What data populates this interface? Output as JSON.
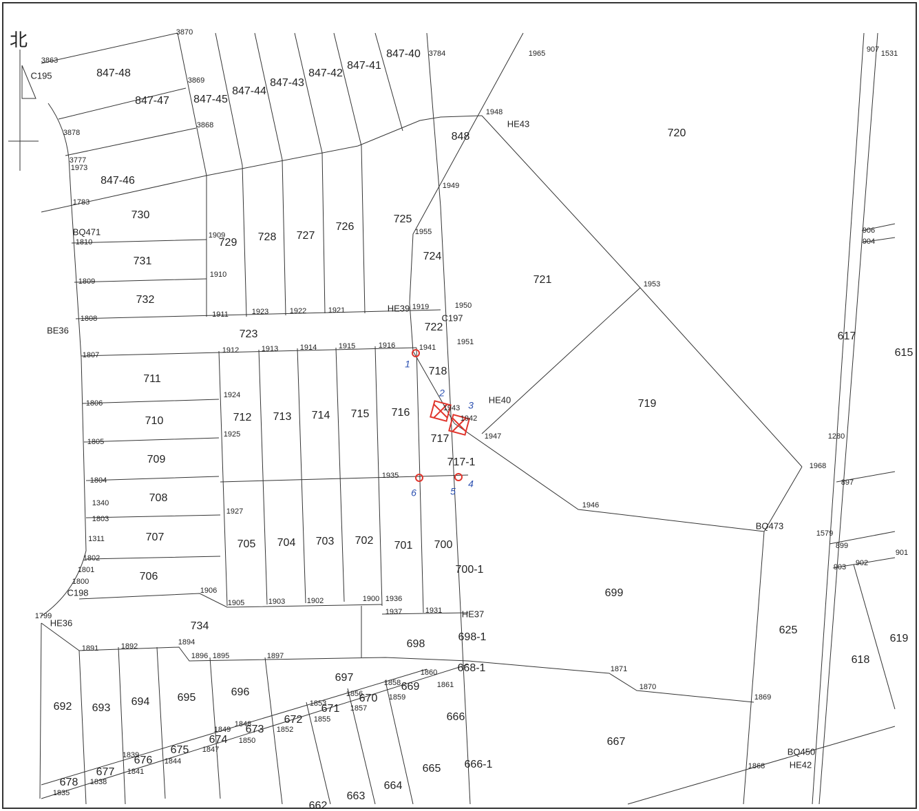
{
  "north_label": "北",
  "parcels": [
    "847-48",
    "847-47",
    "847-45",
    "847-44",
    "847-43",
    "847-42",
    "847-41",
    "847-40",
    "848",
    "720",
    "847-46",
    "730",
    "729",
    "728",
    "727",
    "726",
    "725",
    "724",
    "721",
    "731",
    "732",
    "723",
    "722",
    "617",
    "615",
    "718",
    "711",
    "719",
    "710",
    "712",
    "713",
    "714",
    "715",
    "716",
    "717",
    "709",
    "717-1",
    "708",
    "707",
    "705",
    "704",
    "703",
    "702",
    "701",
    "700",
    "700-1",
    "706",
    "699",
    "734",
    "698",
    "698-1",
    "625",
    "619",
    "618",
    "697",
    "668-1",
    "669",
    "670",
    "671",
    "672",
    "673",
    "674",
    "675",
    "676",
    "677",
    "678",
    "692",
    "693",
    "694",
    "695",
    "696",
    "666",
    "667",
    "665",
    "666-1",
    "664",
    "663",
    "662"
  ],
  "points": [
    "3870",
    "3863",
    "3869",
    "3868",
    "3878",
    "3784",
    "1965",
    "907",
    "1531",
    "1948",
    "1949",
    "1955",
    "906",
    "904",
    "1953",
    "1909",
    "1810",
    "1910",
    "1809",
    "1911",
    "1923",
    "1922",
    "1921",
    "1919",
    "1950",
    "1808",
    "1807",
    "1912",
    "1913",
    "1914",
    "1915",
    "1916",
    "1951",
    "1941",
    "1924",
    "1806",
    "1925",
    "1805",
    "1947",
    "1280",
    "1942",
    "1943",
    "1804",
    "1935",
    "1968",
    "897",
    "1340",
    "1803",
    "1927",
    "1946",
    "1311",
    "1579",
    "899",
    "901",
    "902",
    "903",
    "1802",
    "1801",
    "1800",
    "1906",
    "1905",
    "1903",
    "1902",
    "1900",
    "1936",
    "1937",
    "1931",
    "1799",
    "1891",
    "1892",
    "1894",
    "1896",
    "1895",
    "1897",
    "1871",
    "1870",
    "1869",
    "1858",
    "1860",
    "1861",
    "1859",
    "1857",
    "1856",
    "1853",
    "1855",
    "1852",
    "1848",
    "1849",
    "1850",
    "1847",
    "1844",
    "1841",
    "1839",
    "1838",
    "1835",
    "1868",
    "1783",
    "1973",
    "3777"
  ],
  "codes": [
    "HE43",
    "HE40",
    "HE39",
    "HE37",
    "BQ471",
    "C195",
    "C198",
    "C197",
    "BQ473",
    "BQ450",
    "HE42",
    "HE36",
    "BE36"
  ],
  "handwritten": [
    "1",
    "2",
    "3",
    "4",
    "5",
    "6"
  ]
}
